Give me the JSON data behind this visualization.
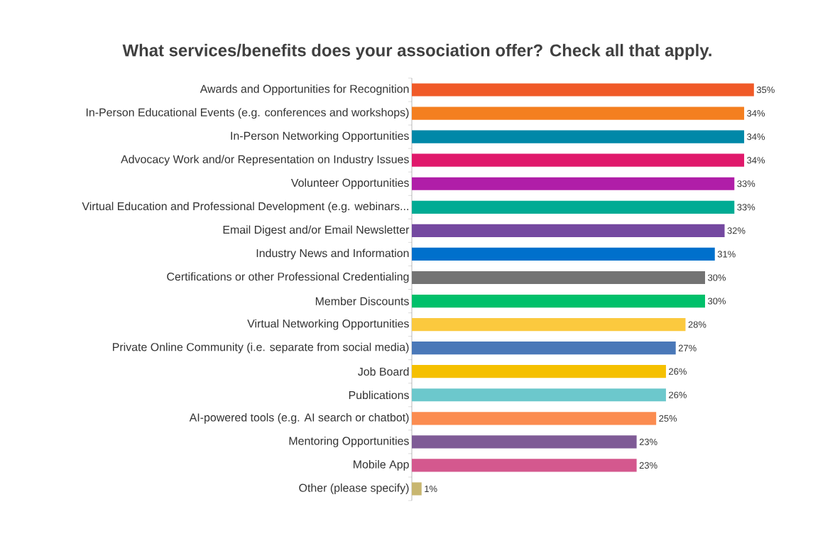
{
  "chart_data": {
    "type": "bar",
    "orientation": "horizontal",
    "title": "What services/benefits does your association offer? Check all that apply.",
    "categories": [
      "Awards and Opportunities for Recognition",
      "In-Person Educational Events (e.g. conferences and workshops)",
      "In-Person Networking Opportunities",
      "Advocacy Work and/or Representation on Industry Issues",
      "Volunteer Opportunities",
      "Virtual Education and Professional Development (e.g. webinars...",
      "Email Digest and/or Email Newsletter",
      "Industry News and Information",
      "Certifications or other Professional Credentialing",
      "Member Discounts",
      "Virtual Networking Opportunities",
      "Private Online Community (i.e. separate from social media)",
      "Job Board",
      "Publications",
      "AI-powered tools (e.g. AI search or chatbot)",
      "Mentoring Opportunities",
      "Mobile App",
      "Other (please specify)"
    ],
    "values": [
      35,
      34,
      34,
      34,
      33,
      33,
      32,
      31,
      30,
      30,
      28,
      27,
      26,
      26,
      25,
      23,
      23,
      1
    ],
    "value_labels": [
      "35%",
      "34%",
      "34%",
      "34%",
      "33%",
      "33%",
      "32%",
      "31%",
      "30%",
      "30%",
      "28%",
      "27%",
      "26%",
      "26%",
      "25%",
      "23%",
      "23%",
      "1%"
    ],
    "colors": [
      "#f05a28",
      "#f47f20",
      "#0088a8",
      "#e0196b",
      "#b01ea8",
      "#00ab94",
      "#7449a0",
      "#0070cc",
      "#737373",
      "#00c06a",
      "#fbc93e",
      "#4a78b8",
      "#f5c000",
      "#6cc8cc",
      "#fb8c50",
      "#7f5b96",
      "#d4588e",
      "#c8b670"
    ],
    "grid": false
  }
}
